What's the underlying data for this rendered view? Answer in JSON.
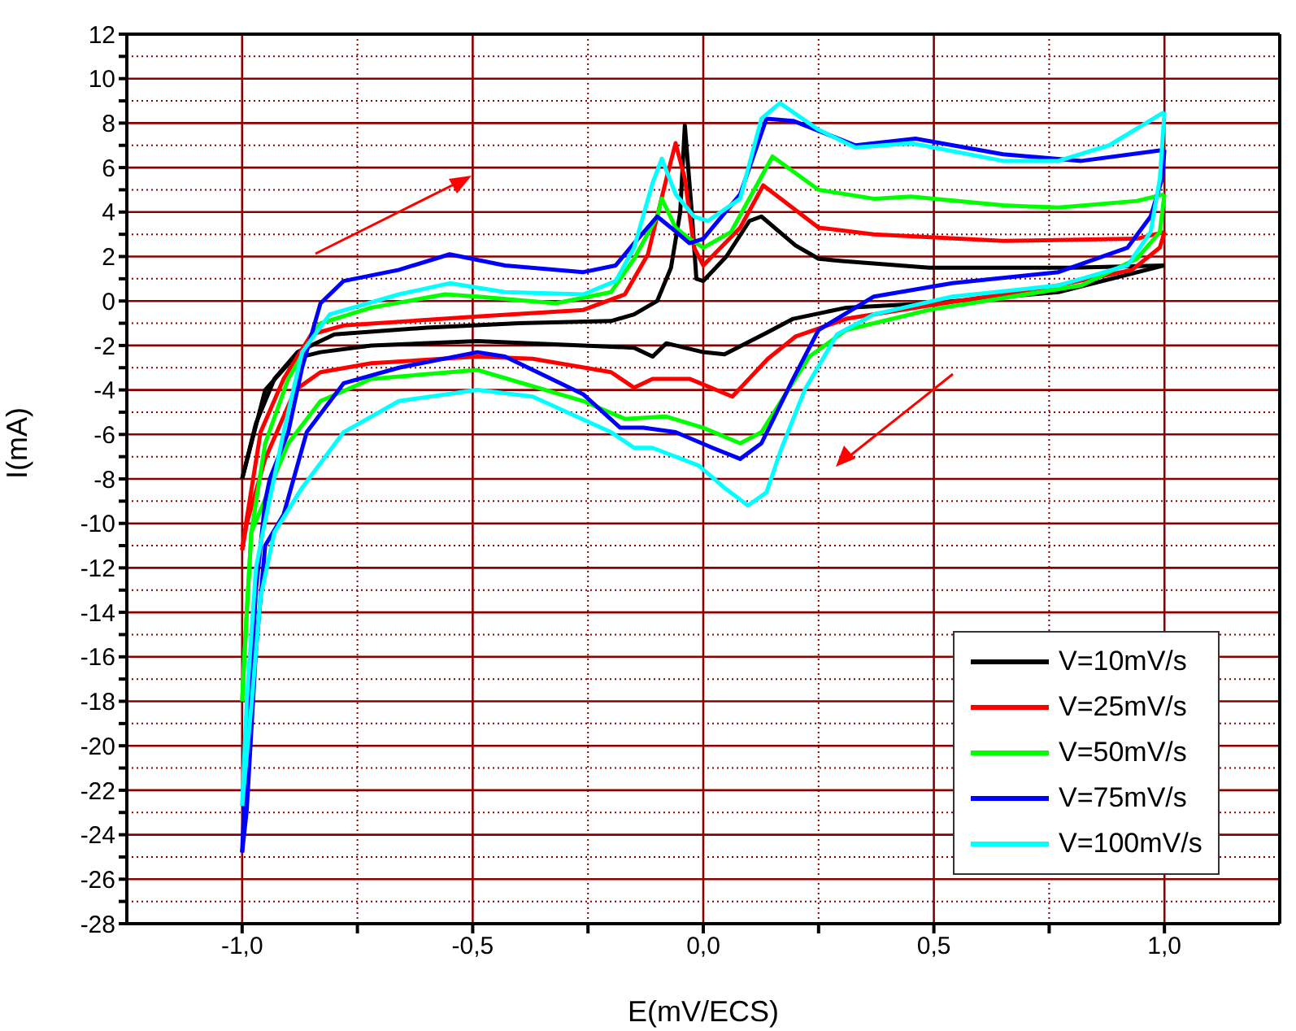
{
  "chart_data": {
    "type": "line",
    "xlabel": "E(mV/ECS)",
    "ylabel": "I(mA)",
    "xlim": [
      -1.25,
      1.25
    ],
    "xticks": [
      {
        "value": -1,
        "label": "-1,0"
      },
      {
        "value": -0.75,
        "label": null
      },
      {
        "value": -0.5,
        "label": "-0,5"
      },
      {
        "value": -0.25,
        "label": null
      },
      {
        "value": 0,
        "label": "0,0"
      },
      {
        "value": 0.25,
        "label": null
      },
      {
        "value": 0.5,
        "label": "0,5"
      },
      {
        "value": 0.75,
        "label": null
      },
      {
        "value": 1,
        "label": "1,0"
      }
    ],
    "ylim": [
      -28,
      12
    ],
    "yticks": [
      -28,
      {
        "value": -27,
        "label": null
      },
      -26,
      {
        "value": -25,
        "label": null
      },
      -24,
      {
        "value": -23,
        "label": null
      },
      -22,
      {
        "value": -21,
        "label": null
      },
      -20,
      {
        "value": -19,
        "label": null
      },
      -18,
      {
        "value": -17,
        "label": null
      },
      -16,
      {
        "value": -15,
        "label": null
      },
      -14,
      {
        "value": -13,
        "label": null
      },
      -12,
      {
        "value": -11,
        "label": null
      },
      -10,
      {
        "value": -9,
        "label": null
      },
      -8,
      {
        "value": -7,
        "label": null
      },
      -6,
      {
        "value": -5,
        "label": null
      },
      -4,
      {
        "value": -3,
        "label": null
      },
      -2,
      {
        "value": -1,
        "label": null
      },
      0,
      {
        "value": 1,
        "label": null
      },
      2,
      {
        "value": 3,
        "label": null
      },
      4,
      {
        "value": 5,
        "label": null
      },
      6,
      {
        "value": 7,
        "label": null
      },
      8,
      {
        "value": 9,
        "label": null
      },
      10,
      {
        "value": 11,
        "label": null
      },
      12
    ],
    "grid": true,
    "legend": "bottom right",
    "marker": "none",
    "line_style": "solid",
    "series": [
      {
        "name": "V=10mV/s",
        "color": "#000000",
        "x": [
          -1,
          -0.97,
          -0.93,
          -0.88,
          -0.8,
          -0.6,
          -0.4,
          -0.2,
          -0.15,
          -0.1,
          -0.07,
          -0.05,
          -0.04,
          -0.025,
          -0.015,
          0,
          0.05,
          0.1,
          0.126,
          0.2,
          0.25,
          0.3,
          0.49,
          0.8,
          1
        ],
        "values": [
          -8,
          -5.5,
          -3.5,
          -2.3,
          -1.5,
          -1.2,
          -1.0,
          -0.9,
          -0.6,
          0,
          1.5,
          4,
          7.9,
          4,
          1,
          0.9,
          2,
          3.6,
          3.8,
          2.5,
          1.9,
          1.8,
          1.5,
          1.5,
          1.6
        ]
      },
      {
        "color": "#000000",
        "x": [
          -1,
          -0.95,
          -0.89,
          -0.83,
          -0.72,
          -0.49,
          -0.26,
          -0.15,
          -0.11,
          -0.08,
          0,
          0.046,
          0.14,
          0.195,
          0.31,
          0.49,
          0.77,
          1
        ],
        "values": [
          -8,
          -4,
          -2.6,
          -2.3,
          -2.0,
          -1.8,
          -2.0,
          -2.1,
          -2.5,
          -1.9,
          -2.3,
          -2.4,
          -1.4,
          -0.8,
          -0.3,
          -0.1,
          0.4,
          1.6
        ]
      },
      {
        "name": "V=25mV/s",
        "color": "#ff0000",
        "x": [
          -1,
          -0.99,
          -0.96,
          -0.91,
          -0.85,
          -0.78,
          -0.49,
          -0.26,
          -0.17,
          -0.12,
          -0.08,
          -0.06,
          -0.04,
          -0.02,
          0,
          0.08,
          0.13,
          0.25,
          0.37,
          0.65,
          0.94,
          1
        ],
        "values": [
          -11.2,
          -9.8,
          -5.9,
          -3.5,
          -1.5,
          -1.1,
          -0.7,
          -0.4,
          0.3,
          2.1,
          5.5,
          7.1,
          5.5,
          2.4,
          1.6,
          3.3,
          5.2,
          3.3,
          3.0,
          2.7,
          2.8,
          3.1
        ]
      },
      {
        "color": "#ff0000",
        "x": [
          -1,
          -0.99,
          -0.95,
          -0.885,
          -0.83,
          -0.72,
          -0.49,
          -0.37,
          -0.2,
          -0.15,
          -0.11,
          -0.03,
          0.063,
          0.14,
          0.2,
          0.31,
          0.49,
          0.77,
          0.93,
          0.99,
          1
        ],
        "values": [
          -11.2,
          -10,
          -7.1,
          -4.0,
          -3.2,
          -2.8,
          -2.5,
          -2.6,
          -3.2,
          -3.9,
          -3.5,
          -3.5,
          -4.3,
          -2.6,
          -1.6,
          -0.8,
          -0.2,
          0.7,
          1.4,
          2.4,
          3.1
        ]
      },
      {
        "name": "V=50mV/s",
        "color": "#00ff00",
        "x": [
          -1,
          -0.99,
          -0.98,
          -0.95,
          -0.9,
          -0.83,
          -0.72,
          -0.56,
          -0.49,
          -0.32,
          -0.2,
          -0.15,
          -0.1,
          -0.09,
          -0.06,
          -0.03,
          0,
          0.06,
          0.15,
          0.25,
          0.37,
          0.45,
          0.65,
          0.77,
          0.94,
          1
        ],
        "values": [
          -18,
          -14,
          -10.4,
          -6.4,
          -3.5,
          -1.0,
          -0.3,
          0.3,
          0.2,
          -0.1,
          0.4,
          1.9,
          3.8,
          4.6,
          3.3,
          2.8,
          2.4,
          3.1,
          6.5,
          5.0,
          4.6,
          4.7,
          4.3,
          4.2,
          4.5,
          4.8
        ]
      },
      {
        "color": "#00ff00",
        "x": [
          -1,
          -0.99,
          -0.98,
          -0.95,
          -0.9,
          -0.83,
          -0.72,
          -0.49,
          -0.26,
          -0.17,
          -0.09,
          -0.08,
          0,
          0.08,
          0.126,
          0.23,
          0.31,
          0.49,
          0.82,
          0.94,
          0.99,
          1
        ],
        "values": [
          -18,
          -14,
          -10.4,
          -8.9,
          -6.4,
          -4.5,
          -3.5,
          -3.1,
          -4.5,
          -5.3,
          -5.2,
          -5.2,
          -5.7,
          -6.4,
          -5.9,
          -2.5,
          -1.3,
          -0.4,
          0.7,
          1.9,
          3.1,
          4.8
        ]
      },
      {
        "name": "V=75mV/s",
        "color": "#0000ff",
        "x": [
          -1,
          -0.99,
          -0.97,
          -0.95,
          -0.94,
          -0.9,
          -0.87,
          -0.83,
          -0.78,
          -0.66,
          -0.55,
          -0.43,
          -0.26,
          -0.19,
          -0.15,
          -0.1,
          -0.07,
          -0.03,
          0,
          0.08,
          0.137,
          0.195,
          0.33,
          0.46,
          0.65,
          0.82,
          1
        ],
        "values": [
          -24.8,
          -20,
          -13,
          -9,
          -8,
          -5.9,
          -3.0,
          -0.1,
          0.9,
          1.4,
          2.1,
          1.6,
          1.3,
          1.6,
          2.6,
          3.8,
          3.3,
          2.6,
          2.8,
          4.8,
          8.2,
          8.1,
          7.0,
          7.3,
          6.6,
          6.3,
          6.8
        ]
      },
      {
        "color": "#0000ff",
        "x": [
          -1,
          -0.99,
          -0.97,
          -0.95,
          -0.91,
          -0.86,
          -0.78,
          -0.66,
          -0.49,
          -0.43,
          -0.26,
          -0.18,
          -0.13,
          -0.06,
          0.02,
          0.08,
          0.126,
          0.195,
          0.25,
          0.37,
          0.54,
          0.77,
          0.92,
          0.97,
          0.995,
          1
        ],
        "values": [
          -24.8,
          -22.9,
          -15.7,
          -11,
          -9.6,
          -5.9,
          -3.7,
          -3.0,
          -2.3,
          -2.5,
          -4.2,
          -5.7,
          -5.7,
          -5.9,
          -6.6,
          -7.1,
          -6.4,
          -3.5,
          -1.3,
          0.2,
          0.8,
          1.3,
          2.4,
          3.8,
          5.5,
          6.8
        ]
      },
      {
        "name": "V=100mV/s",
        "color": "#00ffff",
        "x": [
          -1,
          -0.99,
          -0.97,
          -0.955,
          -0.91,
          -0.87,
          -0.81,
          -0.66,
          -0.55,
          -0.43,
          -0.26,
          -0.19,
          -0.15,
          -0.11,
          -0.09,
          -0.06,
          -0.02,
          0.01,
          0.08,
          0.126,
          0.166,
          0.25,
          0.33,
          0.45,
          0.65,
          0.77,
          0.88,
          1
        ],
        "values": [
          -22.7,
          -18,
          -12,
          -10.4,
          -5.9,
          -2.3,
          -0.6,
          0.3,
          0.8,
          0.4,
          0.3,
          0.9,
          2.4,
          5.3,
          6.4,
          4.8,
          3.8,
          3.6,
          4.6,
          8.2,
          8.9,
          7.7,
          6.9,
          7.1,
          6.3,
          6.3,
          7.0,
          8.5
        ]
      },
      {
        "color": "#00ffff",
        "x": [
          -1,
          -0.98,
          -0.96,
          -0.93,
          -0.87,
          -0.78,
          -0.66,
          -0.49,
          -0.37,
          -0.2,
          -0.15,
          -0.11,
          -0.01,
          0.046,
          0.097,
          0.137,
          0.17,
          0.22,
          0.29,
          0.37,
          0.54,
          0.77,
          0.92,
          0.97,
          0.99,
          1
        ],
        "values": [
          -22.7,
          -18.2,
          -13.3,
          -10.4,
          -8.4,
          -5.9,
          -4.5,
          -4.0,
          -4.3,
          -5.9,
          -6.6,
          -6.6,
          -7.4,
          -8.4,
          -9.2,
          -8.6,
          -6.6,
          -4.0,
          -1.5,
          -0.6,
          0.2,
          0.7,
          1.6,
          3.1,
          5.5,
          8.5
        ]
      }
    ]
  }
}
